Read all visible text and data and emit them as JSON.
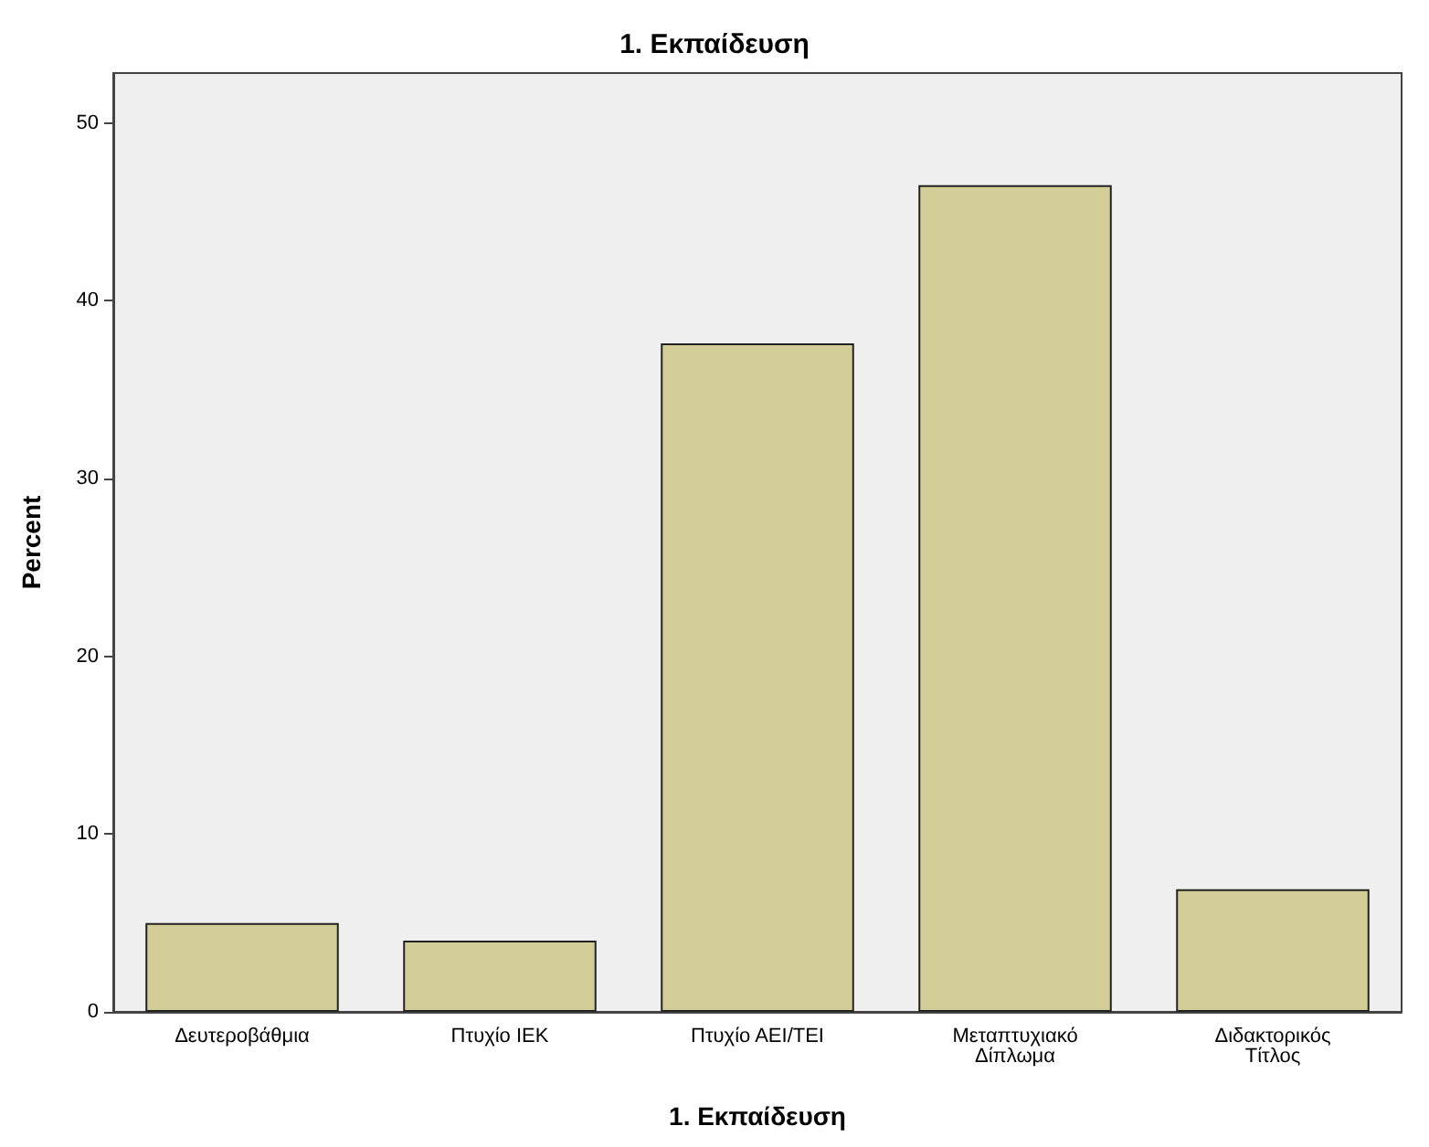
{
  "chart_data": {
    "type": "bar",
    "title": "1. Εκπαίδευση",
    "xlabel": "1. Εκπαίδευση",
    "ylabel": "Percent",
    "categories": [
      "Δευτεροβάθμια",
      "Πτυχίο ΙΕΚ",
      "Πτυχίο ΑΕΙ/ΤΕΙ",
      "Μεταπτυχιακό Δίπλωμα",
      "Διδακτορικός Τίτλος"
    ],
    "values": [
      5.0,
      4.0,
      37.6,
      46.5,
      6.9
    ],
    "color": "#d3ce98",
    "ylim": [
      0,
      52.8
    ],
    "yticks": [
      0,
      10,
      20,
      30,
      40,
      50
    ]
  }
}
